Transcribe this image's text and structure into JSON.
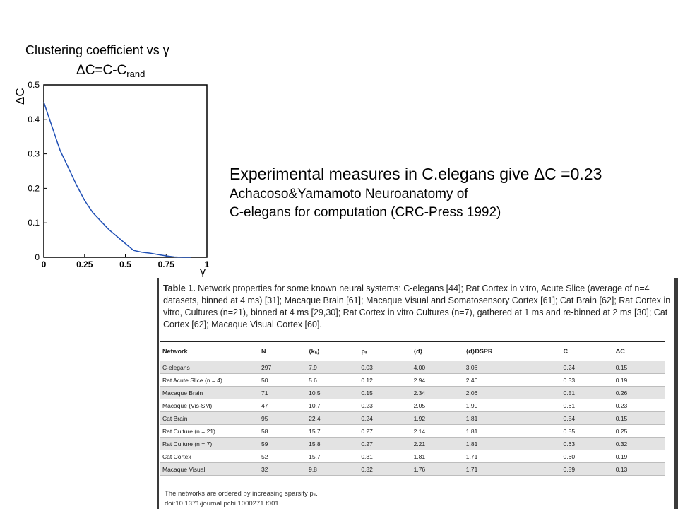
{
  "chart_data": {
    "type": "line",
    "title": "Clustering coefficient vs γ",
    "subtitle_main": "ΔC=C-C",
    "subtitle_sub": "rand",
    "ylabel": "ΔC",
    "xlabel": "γ",
    "xlim": [
      0,
      1
    ],
    "ylim": [
      0,
      0.5
    ],
    "xticks": [
      "0",
      "0.25",
      "0.5",
      "0.75",
      "1"
    ],
    "yticks": [
      "0",
      "0.1",
      "0.2",
      "0.3",
      "0.4",
      "0.5"
    ],
    "series": [
      {
        "color": "#1f4fb5",
        "x": [
          0,
          0.05,
          0.1,
          0.15,
          0.2,
          0.25,
          0.3,
          0.35,
          0.4,
          0.45,
          0.5,
          0.55,
          0.6,
          0.65,
          0.7,
          0.75,
          0.8,
          0.85,
          0.9
        ],
        "y": [
          0.45,
          0.38,
          0.31,
          0.26,
          0.21,
          0.165,
          0.13,
          0.105,
          0.08,
          0.06,
          0.04,
          0.02,
          0.015,
          0.012,
          0.008,
          0.004,
          0.001,
          0.0,
          0.0
        ]
      }
    ]
  },
  "experimental": {
    "line1": "Experimental measures  in C.elegans give ΔC =0.23",
    "line2": "Achacoso&Yamamoto Neuroanatomy of",
    "line3": "C-elegans for computation (CRC-Press 1992)"
  },
  "paper_table": {
    "caption_label": "Table 1.",
    "caption_lines": [
      "Network properties for some known neural systems: C-elegans [44]; Rat Cortex in vitro, Acute Slice (average of n=4",
      "datasets, binned at 4 ms) [31]; Macaque Brain [61]; Macaque Visual and Somatosensory Cortex [61]; Cat Brain [62]; Rat Cortex in",
      "vitro, Cultures (n=21), binned at 4 ms [29,30]; Rat Cortex in vitro Cultures (n=7), gathered at 1 ms and re-binned at 2 ms [30]; Cat",
      "Cortex [62]; Macaque Visual Cortex [60]."
    ],
    "headers": [
      "Network",
      "N",
      "⟨kₐ⟩",
      "pₛ",
      "⟨d⟩",
      "⟨d⟩DSPR",
      "C",
      "ΔC"
    ],
    "rows": [
      [
        "C-elegans",
        "297",
        "7.9",
        "0.03",
        "4.00",
        "3.06",
        "0.24",
        "0.15"
      ],
      [
        "Rat Acute Slice (n = 4)",
        "50",
        "5.6",
        "0.12",
        "2.94",
        "2.40",
        "0.33",
        "0.19"
      ],
      [
        "Macaque Brain",
        "71",
        "10.5",
        "0.15",
        "2.34",
        "2.06",
        "0.51",
        "0.26"
      ],
      [
        "Macaque (Vis-SM)",
        "47",
        "10.7",
        "0.23",
        "2.05",
        "1.90",
        "0.61",
        "0.23"
      ],
      [
        "Cat Brain",
        "95",
        "22.4",
        "0.24",
        "1.92",
        "1.81",
        "0.54",
        "0.15"
      ],
      [
        "Rat Culture (n = 21)",
        "58",
        "15.7",
        "0.27",
        "2.14",
        "1.81",
        "0.55",
        "0.25"
      ],
      [
        "Rat Culture (n = 7)",
        "59",
        "15.8",
        "0.27",
        "2.21",
        "1.81",
        "0.63",
        "0.32"
      ],
      [
        "Cat Cortex",
        "52",
        "15.7",
        "0.31",
        "1.81",
        "1.71",
        "0.60",
        "0.19"
      ],
      [
        "Macaque Visual",
        "32",
        "9.8",
        "0.32",
        "1.76",
        "1.71",
        "0.59",
        "0.13"
      ]
    ],
    "footnote": "The networks are ordered by increasing sparsity pₛ.",
    "doi": "doi:10.1371/journal.pcbi.1000271.t001"
  }
}
